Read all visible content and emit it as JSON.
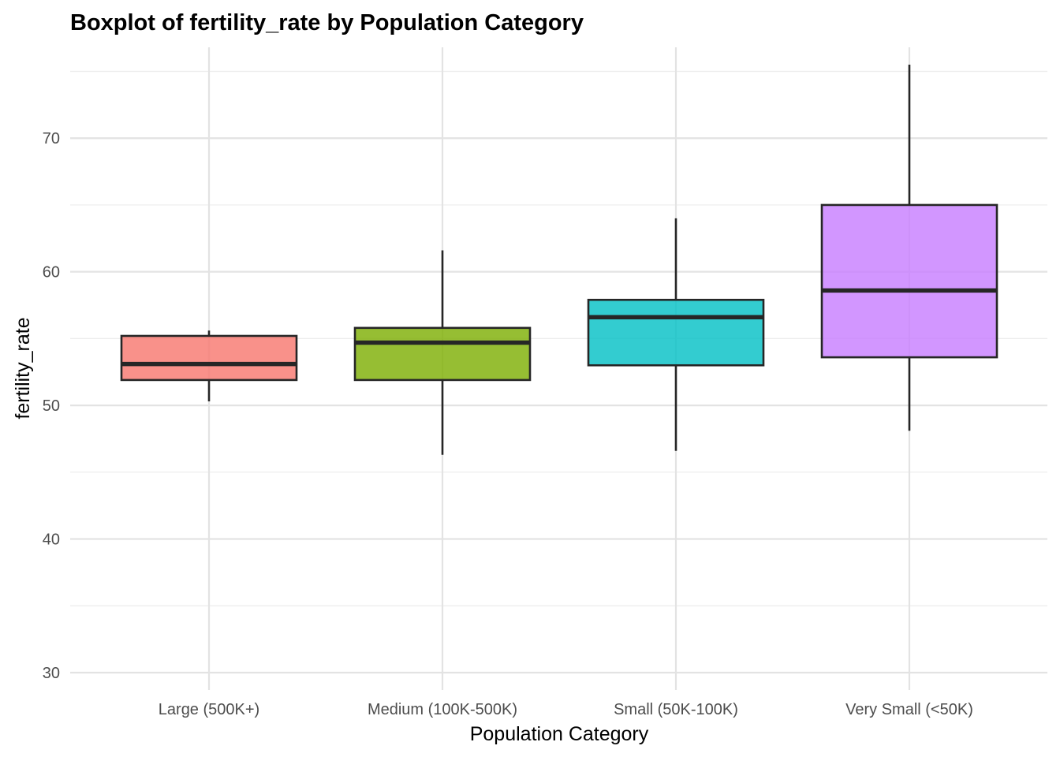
{
  "chart_data": {
    "type": "boxplot",
    "title": "Boxplot of fertility_rate by Population Category",
    "xlabel": "Population Category",
    "ylabel": "fertility_rate",
    "ylim": [
      28.7,
      76.8
    ],
    "yticks": [
      30,
      40,
      50,
      60,
      70
    ],
    "grid": true,
    "legend": "none",
    "categories": [
      "Large (500K+)",
      "Medium (100K-500K)",
      "Small (50K-100K)",
      "Very Small (<50K)"
    ],
    "boxes": [
      {
        "category": "Large (500K+)",
        "min": 50.3,
        "q1": 51.9,
        "median": 53.1,
        "q3": 55.2,
        "max": 55.6,
        "color": "#F8766D"
      },
      {
        "category": "Medium (100K-500K)",
        "min": 46.3,
        "q1": 51.9,
        "median": 54.7,
        "q3": 55.8,
        "max": 61.6,
        "color": "#7CAE00"
      },
      {
        "category": "Small (50K-100K)",
        "min": 46.6,
        "q1": 53.0,
        "median": 56.6,
        "q3": 57.9,
        "max": 64.0,
        "color": "#00BFC4"
      },
      {
        "category": "Very Small (<50K)",
        "min": 48.1,
        "q1": 53.6,
        "median": 58.6,
        "q3": 65.0,
        "max": 75.5,
        "color": "#C77CFF"
      }
    ]
  }
}
